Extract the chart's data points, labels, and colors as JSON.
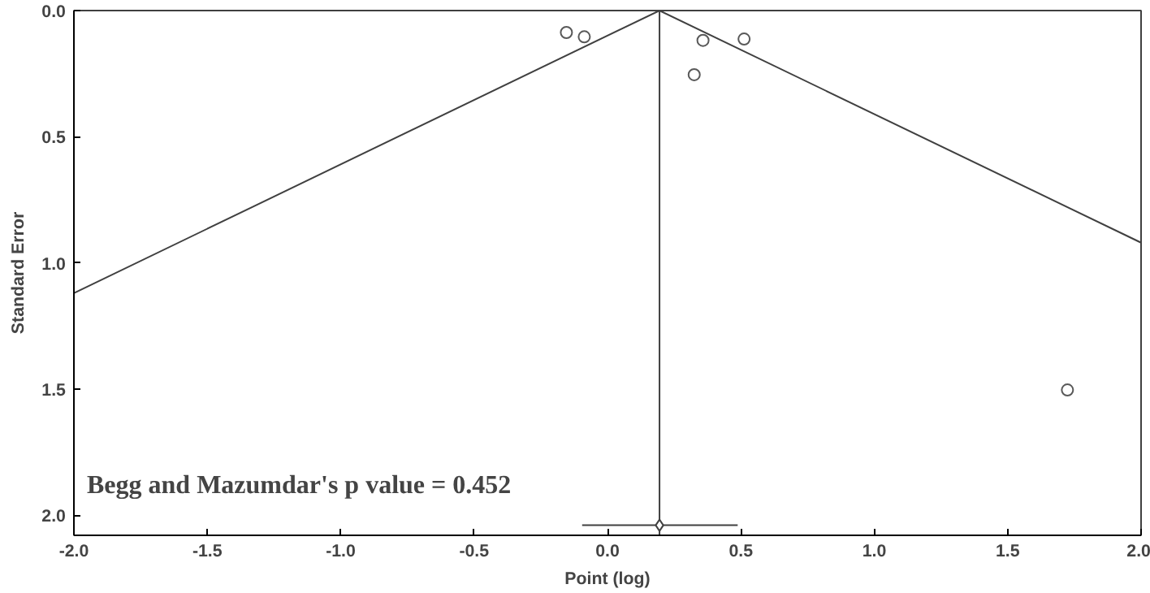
{
  "chart_data": {
    "type": "scatter",
    "xlabel": "Point (log)",
    "ylabel": "Standard Error",
    "xlim": [
      -2,
      2
    ],
    "ylim": [
      2.08,
      0
    ],
    "xticks": [
      {
        "value": -2,
        "label": "-2.0"
      },
      {
        "value": -1.5,
        "label": "-1.5"
      },
      {
        "value": -1,
        "label": "-1.0"
      },
      {
        "value": -0.5,
        "label": "-0.5"
      },
      {
        "value": 0,
        "label": "0.0"
      },
      {
        "value": 0.5,
        "label": "0.5"
      },
      {
        "value": 1,
        "label": "1.0"
      },
      {
        "value": 1.5,
        "label": "1.5"
      },
      {
        "value": 2,
        "label": "2.0"
      }
    ],
    "yticks": [
      {
        "value": 0,
        "label": "0.0"
      },
      {
        "value": 0.5,
        "label": "0.5"
      },
      {
        "value": 1,
        "label": "1.0"
      },
      {
        "value": 1.5,
        "label": "1.5"
      },
      {
        "value": 2,
        "label": "2.0"
      }
    ],
    "series": [
      {
        "marker": "circle",
        "color": "#595959",
        "x": [
          -0.154,
          -0.087,
          0.358,
          0.512,
          0.325,
          1.724
        ],
        "values": [
          0.087,
          0.104,
          0.118,
          0.113,
          0.254,
          1.504
        ]
      },
      {
        "type": "line",
        "marker": "none",
        "color": "#404040",
        "x": [
          -2,
          0.195,
          2
        ],
        "values": [
          1.12,
          0,
          0.92
        ]
      },
      {
        "type": "scatter",
        "marker": "diamond",
        "color": "#404040",
        "x": [
          0.195
        ],
        "values": [
          2.04
        ],
        "xerrors": [
          [
            -0.095,
            0.488
          ]
        ]
      }
    ],
    "ref_lines": [
      {
        "axis": "x",
        "value": 0.195,
        "color": "#404040"
      }
    ],
    "annotations": [
      "Begg and Mazumdar's p value = 0.452"
    ],
    "grid": false
  }
}
